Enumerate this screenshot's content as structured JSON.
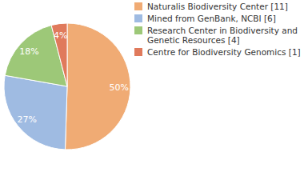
{
  "chart_data": {
    "type": "pie",
    "categories": [
      "Naturalis Biodiversity Center [11]",
      "Mined from GenBank, NCBI [6]",
      "Research Center in Biodiversity and Genetic Resources [4]",
      "Centre for Biodiversity Genomics [1]"
    ],
    "values": [
      50,
      27,
      18,
      4
    ],
    "value_labels": [
      "50%",
      "27%",
      "18%",
      "4%"
    ],
    "colors": [
      "#f0ab74",
      "#9fbbe2",
      "#9dc878",
      "#e07a5c"
    ],
    "data_labels": true,
    "legend": "top-right"
  }
}
